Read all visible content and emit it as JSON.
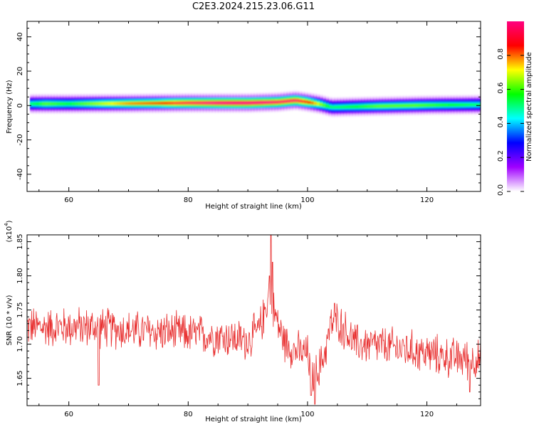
{
  "title": "C2E3.2024.215.23.06.G11",
  "chart_data": [
    {
      "type": "heatmap",
      "id": "spectrogram",
      "xlabel": "Height of straight line (km)",
      "ylabel": "Frequency (Hz)",
      "xlim": [
        53,
        129
      ],
      "ylim": [
        -50,
        49
      ],
      "xticks": [
        60,
        80,
        100,
        120
      ],
      "yticks": [
        -40,
        -20,
        0,
        20,
        40
      ],
      "xtick_labels": [
        "60",
        "80",
        "100",
        "120"
      ],
      "ytick_labels": [
        "-40",
        "-20",
        "0",
        "20",
        "40"
      ],
      "band": {
        "x_range": [
          53.5,
          129
        ],
        "center_hz": [
          [
            53.5,
            1.0
          ],
          [
            60,
            1.0
          ],
          [
            70,
            1.2
          ],
          [
            80,
            1.5
          ],
          [
            90,
            1.5
          ],
          [
            95,
            2.0
          ],
          [
            98,
            3.0
          ],
          [
            100,
            2.0
          ],
          [
            102,
            0.8
          ],
          [
            104,
            -1.0
          ],
          [
            110,
            -0.5
          ],
          [
            120,
            0.2
          ],
          [
            129,
            0.5
          ]
        ],
        "halfwidth_hz": 2.5,
        "intensity": [
          [
            53.5,
            0.4
          ],
          [
            56,
            0.5
          ],
          [
            60,
            0.45
          ],
          [
            65,
            0.55
          ],
          [
            70,
            0.65
          ],
          [
            75,
            0.7
          ],
          [
            78,
            0.8
          ],
          [
            82,
            0.85
          ],
          [
            85,
            0.9
          ],
          [
            88,
            0.92
          ],
          [
            92,
            0.9
          ],
          [
            95,
            0.85
          ],
          [
            98,
            0.85
          ],
          [
            100,
            0.75
          ],
          [
            102,
            0.55
          ],
          [
            104,
            0.4
          ],
          [
            108,
            0.45
          ],
          [
            112,
            0.5
          ],
          [
            118,
            0.5
          ],
          [
            124,
            0.45
          ],
          [
            129,
            0.4
          ]
        ]
      },
      "colorbar": {
        "label": "Normalized spectral amplitude",
        "range": [
          0,
          1
        ],
        "ticks": [
          0.0,
          0.2,
          0.4,
          0.6,
          0.8
        ],
        "tick_labels": [
          "0.0",
          "0.2",
          "0.4",
          "0.6",
          "0.8"
        ],
        "colors": [
          "#ffffff",
          "#a000ff",
          "#0000ff",
          "#00ffff",
          "#00ff00",
          "#ffff00",
          "#ff0000",
          "#ff0080"
        ]
      }
    },
    {
      "type": "line",
      "id": "snr",
      "xlabel": "Height of straight line (km)",
      "ylabel": "SNR (10 * v/v)",
      "yscale_label": "(x10",
      "yscale_exponent": "4",
      "yscale_close": ")",
      "xlim": [
        53,
        129
      ],
      "ylim": [
        1.61,
        1.86
      ],
      "xticks": [
        60,
        80,
        100,
        120
      ],
      "yticks": [
        1.65,
        1.7,
        1.75,
        1.8,
        1.85
      ],
      "xtick_labels": [
        "60",
        "80",
        "100",
        "120"
      ],
      "ytick_labels": [
        "1.65",
        "1.70",
        "1.75",
        "1.80",
        "1.85"
      ],
      "color": "#e83030",
      "x_range": [
        53,
        129
      ],
      "num_points": 900,
      "noise_amplitude": 0.05,
      "baseline": [
        [
          53,
          1.725
        ],
        [
          60,
          1.725
        ],
        [
          65,
          1.725
        ],
        [
          70,
          1.72
        ],
        [
          75,
          1.718
        ],
        [
          80,
          1.715
        ],
        [
          85,
          1.712
        ],
        [
          90,
          1.705
        ],
        [
          92,
          1.722
        ],
        [
          93.5,
          1.77
        ],
        [
          94.5,
          1.745
        ],
        [
          96,
          1.705
        ],
        [
          98,
          1.69
        ],
        [
          100,
          1.685
        ],
        [
          101,
          1.65
        ],
        [
          102.5,
          1.675
        ],
        [
          104,
          1.73
        ],
        [
          105,
          1.735
        ],
        [
          108,
          1.7
        ],
        [
          112,
          1.698
        ],
        [
          118,
          1.69
        ],
        [
          124,
          1.68
        ],
        [
          129,
          1.677
        ]
      ],
      "spikes": [
        [
          93.9,
          1.86
        ],
        [
          94.1,
          1.82
        ],
        [
          93.6,
          1.8
        ],
        [
          101.2,
          1.612
        ],
        [
          100.6,
          1.625
        ],
        [
          65,
          1.64
        ],
        [
          127.2,
          1.63
        ],
        [
          104.5,
          1.76
        ]
      ]
    }
  ]
}
